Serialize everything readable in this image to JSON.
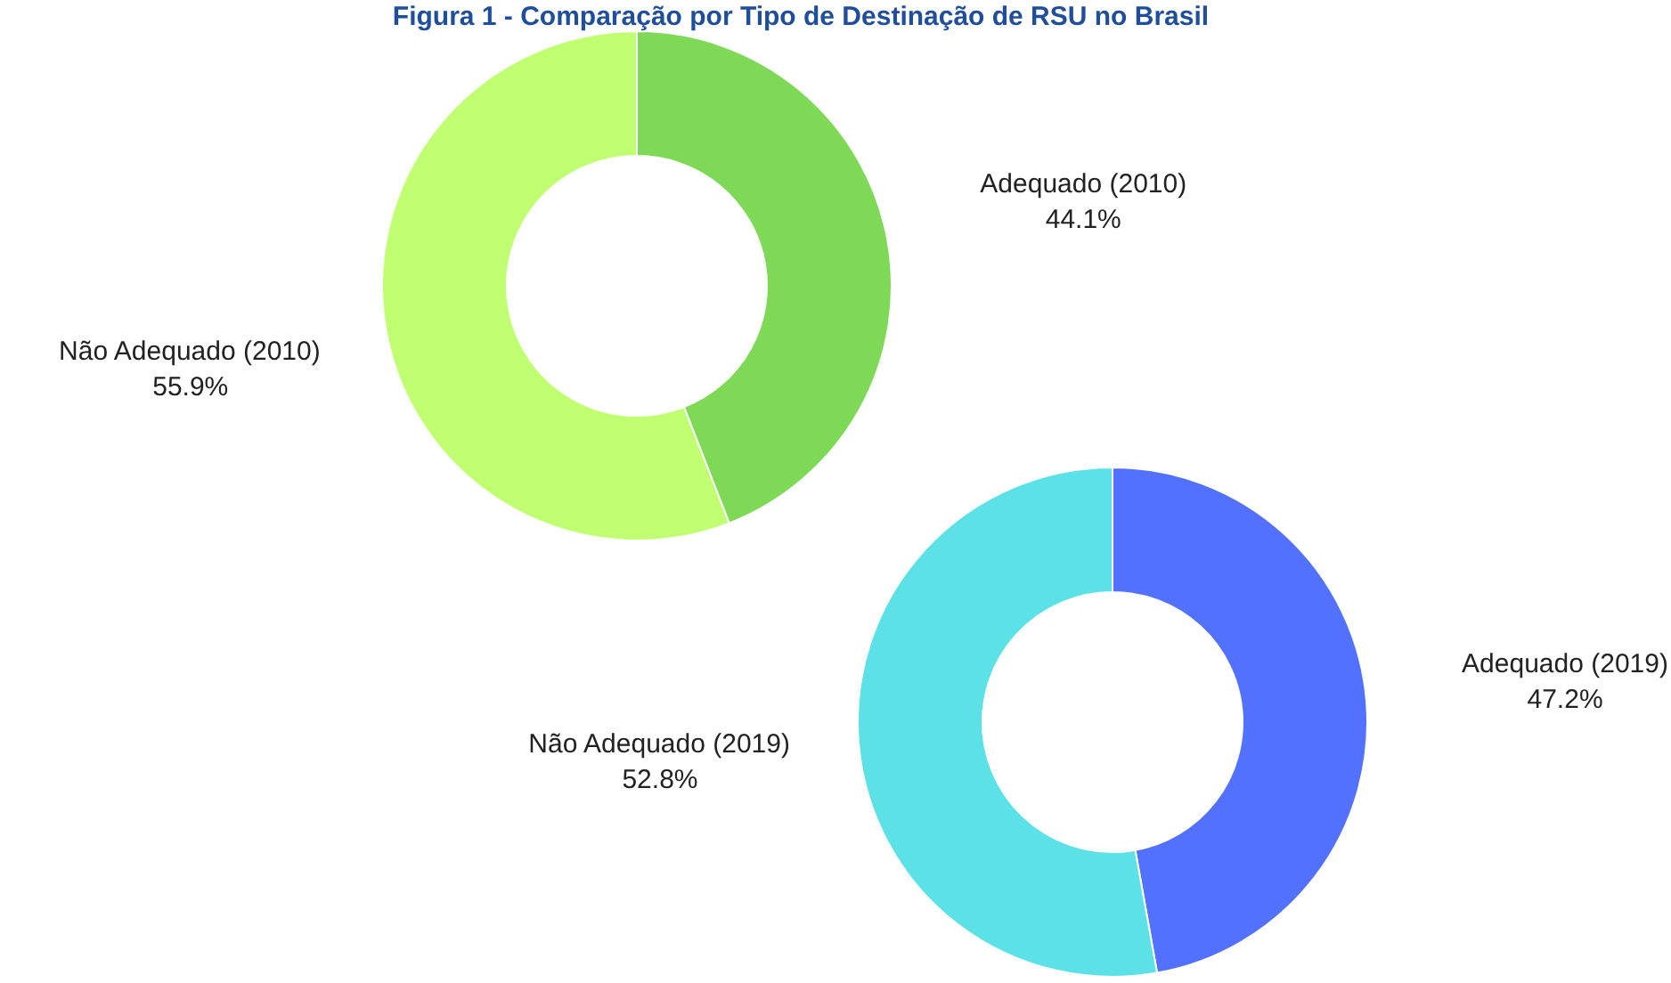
{
  "chart_data": [
    {
      "type": "donut",
      "title": "Figura 1 - Comparação por Tipo de Destinação de RSU no Brasil",
      "categories": [
        "Adequado (2010)",
        "Não Adequado (2010)"
      ],
      "values": [
        44.1,
        55.9
      ],
      "colors": [
        "#7ed957",
        "#c0ff72"
      ],
      "value_labels": [
        "44.1%",
        "55.9%"
      ]
    },
    {
      "type": "donut",
      "categories": [
        "Adequado (2019)",
        "Não Adequado (2019)"
      ],
      "values": [
        47.2,
        52.8
      ],
      "colors": [
        "#5271ff",
        "#5ce1e6"
      ],
      "value_labels": [
        "47.2%",
        "52.8%"
      ]
    }
  ]
}
